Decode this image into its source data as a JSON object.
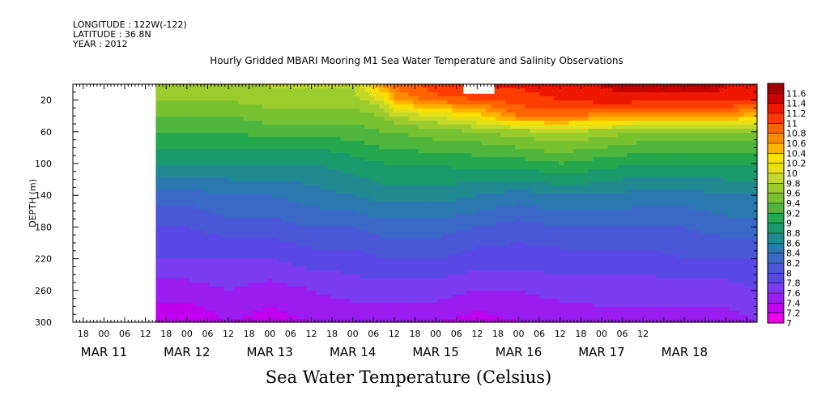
{
  "meta": {
    "longitude": "LONGITUDE : 122W(-122)",
    "latitude": "LATITUDE : 36.8N",
    "year": "YEAR : 2012"
  },
  "caption": "Sea Water Temperature (Celsius)",
  "colorbar": {
    "levels": [
      7,
      7.2,
      7.4,
      7.6,
      7.8,
      8,
      8.2,
      8.4,
      8.6,
      8.8,
      9,
      9.2,
      9.4,
      9.6,
      9.8,
      10,
      10.2,
      10.4,
      10.6,
      10.8,
      11,
      11.2,
      11.4,
      11.6
    ],
    "colors": [
      "#ee00ee",
      "#c000ee",
      "#9a1cf0",
      "#7a3cee",
      "#5a48e6",
      "#4a58d8",
      "#3a68c6",
      "#2a78b0",
      "#208a90",
      "#1a9a6c",
      "#24a84e",
      "#4eb63c",
      "#78c232",
      "#9ccc2c",
      "#c4d828",
      "#e6e018",
      "#ffe000",
      "#ffb400",
      "#ff8c00",
      "#ff6400",
      "#ff3c00",
      "#ee1800",
      "#c80000",
      "#a00000"
    ],
    "labels": [
      "7",
      "7.2",
      "7.4",
      "7.6",
      "7.8",
      "8",
      "8.2",
      "8.4",
      "8.6",
      "8.8",
      "9",
      "9.2",
      "9.4",
      "9.6",
      "9.8",
      "10",
      "10.2",
      "10.4",
      "10.6",
      "10.8",
      "11",
      "11.2",
      "11.4",
      "11.6"
    ]
  },
  "chart_data": {
    "type": "heatmap",
    "title": "Hourly Gridded MBARI Mooring M1 Sea Water Temperature and Salinity Observations",
    "ylabel": "DEPTH (m)",
    "ylim": [
      300,
      0
    ],
    "y_ticks": [
      20,
      60,
      100,
      140,
      180,
      220,
      260,
      300
    ],
    "x_hour_ticks": [
      "18",
      "00",
      "06",
      "12",
      "18",
      "00",
      "06",
      "12",
      "18",
      "00",
      "06",
      "12",
      "18",
      "00",
      "06",
      "12",
      "18",
      "00",
      "06",
      "12",
      "18",
      "00",
      "06",
      "12",
      "18",
      "00",
      "06",
      "12"
    ],
    "x_date_labels": [
      "MAR 11",
      "MAR 12",
      "MAR 13",
      "MAR 14",
      "MAR 15",
      "MAR 16",
      "MAR 17",
      "MAR 18"
    ],
    "xlim": [
      "2012-03-10T15:00",
      "2012-03-18T21:00"
    ],
    "data_start": "2012-03-11T15:00",
    "missing_region": {
      "time_start": "2012-03-15T08:00",
      "time_end": "2012-03-15T17:00",
      "depth_start": 0,
      "depth_end": 12
    },
    "times": [
      "2012-03-11T15:00",
      "2012-03-12T00:00",
      "2012-03-12T12:00",
      "2012-03-13T00:00",
      "2012-03-13T12:00",
      "2012-03-14T00:00",
      "2012-03-14T09:00",
      "2012-03-14T12:00",
      "2012-03-15T00:00",
      "2012-03-15T12:00",
      "2012-03-16T00:00",
      "2012-03-16T12:00",
      "2012-03-17T00:00",
      "2012-03-17T12:00",
      "2012-03-18T00:00",
      "2012-03-18T12:00",
      "2012-03-18T21:00"
    ],
    "depths": [
      5,
      20,
      40,
      60,
      80,
      100,
      140,
      180,
      220,
      260,
      300
    ],
    "values": [
      [
        9.7,
        9.7,
        9.7,
        9.8,
        9.8,
        9.8,
        10.6,
        10.8,
        11.1,
        11.2,
        11.2,
        11.3,
        11.4,
        11.5,
        11.5,
        11.4,
        11.3
      ],
      [
        9.6,
        9.6,
        9.6,
        9.7,
        9.7,
        9.7,
        10.0,
        10.6,
        10.9,
        11.0,
        11.1,
        11.2,
        11.3,
        11.3,
        11.3,
        11.3,
        11.2
      ],
      [
        9.4,
        9.4,
        9.4,
        9.5,
        9.5,
        9.5,
        9.6,
        9.8,
        10.0,
        10.3,
        10.8,
        10.9,
        10.7,
        10.6,
        10.6,
        10.6,
        10.5
      ],
      [
        9.2,
        9.2,
        9.2,
        9.3,
        9.3,
        9.3,
        9.4,
        9.4,
        9.5,
        9.6,
        9.7,
        9.8,
        9.7,
        9.6,
        9.6,
        9.6,
        9.6
      ],
      [
        9.0,
        9.0,
        9.0,
        9.0,
        9.0,
        9.1,
        9.2,
        9.2,
        9.3,
        9.3,
        9.4,
        9.5,
        9.4,
        9.3,
        9.3,
        9.3,
        9.3
      ],
      [
        8.8,
        8.8,
        8.8,
        8.8,
        8.8,
        8.9,
        9.0,
        9.0,
        9.0,
        9.1,
        9.1,
        9.2,
        9.1,
        9.0,
        9.0,
        9.0,
        9.0
      ],
      [
        8.3,
        8.3,
        8.4,
        8.4,
        8.5,
        8.6,
        8.7,
        8.7,
        8.7,
        8.6,
        8.5,
        8.6,
        8.6,
        8.5,
        8.5,
        8.6,
        8.6
      ],
      [
        8.0,
        8.0,
        8.1,
        8.1,
        8.2,
        8.2,
        8.3,
        8.3,
        8.3,
        8.2,
        8.1,
        8.2,
        8.2,
        8.2,
        8.2,
        8.3,
        8.3
      ],
      [
        7.8,
        7.8,
        7.8,
        7.8,
        7.9,
        7.9,
        8.0,
        8.0,
        8.0,
        7.9,
        7.9,
        7.9,
        7.9,
        7.9,
        8.0,
        8.0,
        8.0
      ],
      [
        7.5,
        7.5,
        7.6,
        7.5,
        7.6,
        7.7,
        7.7,
        7.7,
        7.7,
        7.6,
        7.6,
        7.7,
        7.7,
        7.7,
        7.7,
        7.7,
        7.8
      ],
      [
        7.2,
        7.2,
        7.4,
        7.3,
        7.4,
        7.4,
        7.4,
        7.4,
        7.4,
        7.3,
        7.4,
        7.4,
        7.5,
        7.5,
        7.5,
        7.5,
        7.6
      ]
    ]
  }
}
